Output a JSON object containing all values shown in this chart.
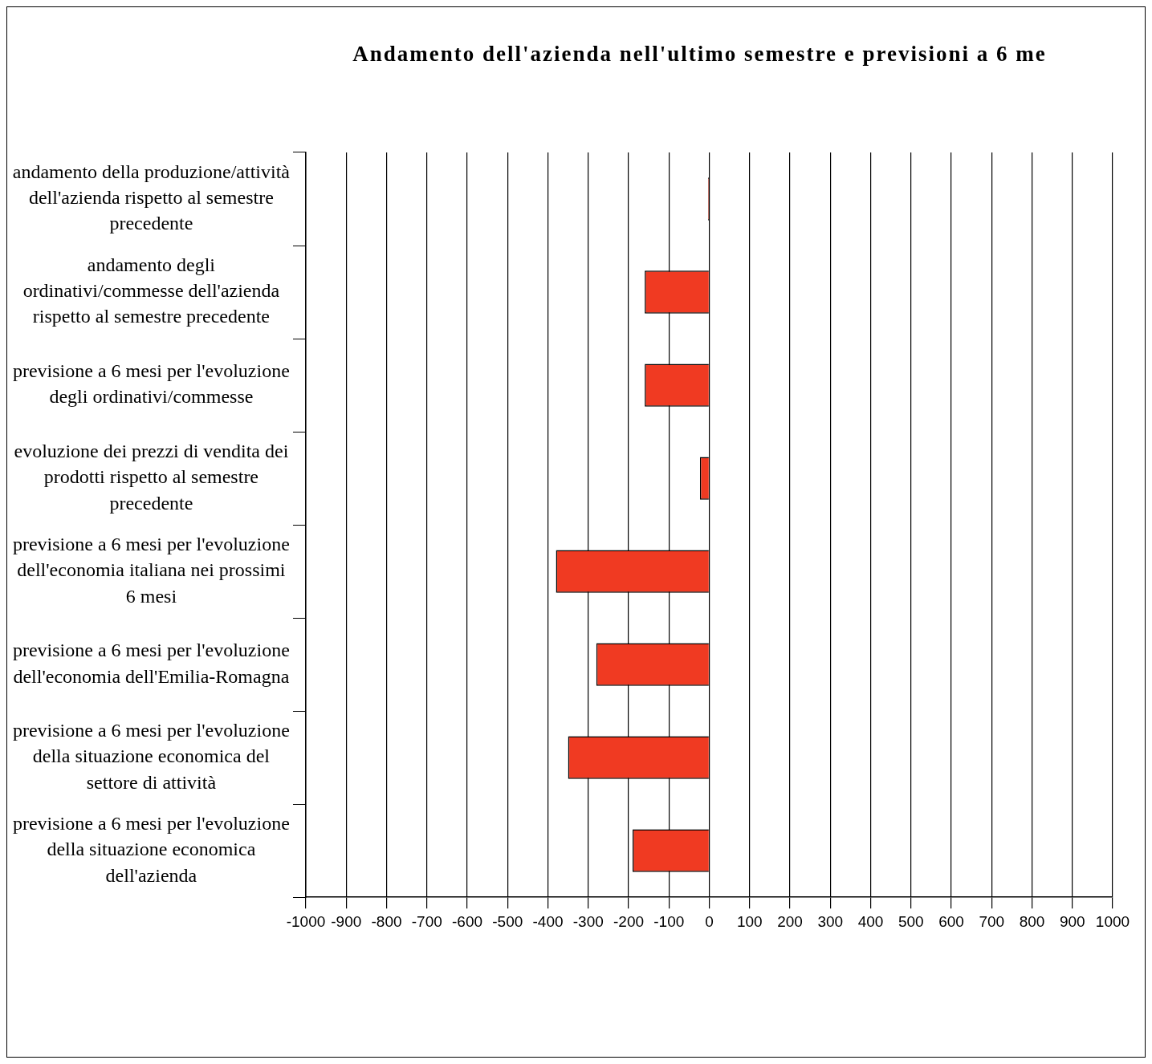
{
  "chart_data": {
    "type": "bar",
    "orientation": "horizontal",
    "title": "Andamento dell'azienda nell'ultimo semestre e previsioni a 6 me",
    "categories": [
      "andamento della produzione/attività dell'azienda rispetto al semestre precedente",
      "andamento degli ordinativi/commesse dell'azienda rispetto al semestre precedente",
      "previsione a 6 mesi per l'evoluzione degli ordinativi/commesse",
      "evoluzione dei prezzi di vendita dei prodotti rispetto al semestre precedente",
      "previsione a 6 mesi per l'evoluzione dell'economia italiana nei prossimi 6 mesi",
      "previsione a 6 mesi per l'evoluzione dell'economia dell'Emilia-Romagna",
      "previsione a 6 mesi per l'evoluzione della situazione economica del settore di attività",
      "previsione a 6 mesi per l'evoluzione della situazione economica dell'azienda"
    ],
    "values": [
      -3,
      -160,
      -160,
      -23,
      -380,
      -280,
      -350,
      -190
    ],
    "color": "#f03a22",
    "xlim": [
      -1000,
      1000
    ],
    "xticks": [
      -1000,
      -900,
      -800,
      -700,
      -600,
      -500,
      -400,
      -300,
      -200,
      -100,
      0,
      100,
      200,
      300,
      400,
      500,
      600,
      700,
      800,
      900,
      1000
    ],
    "grid": "x",
    "legend": false
  }
}
